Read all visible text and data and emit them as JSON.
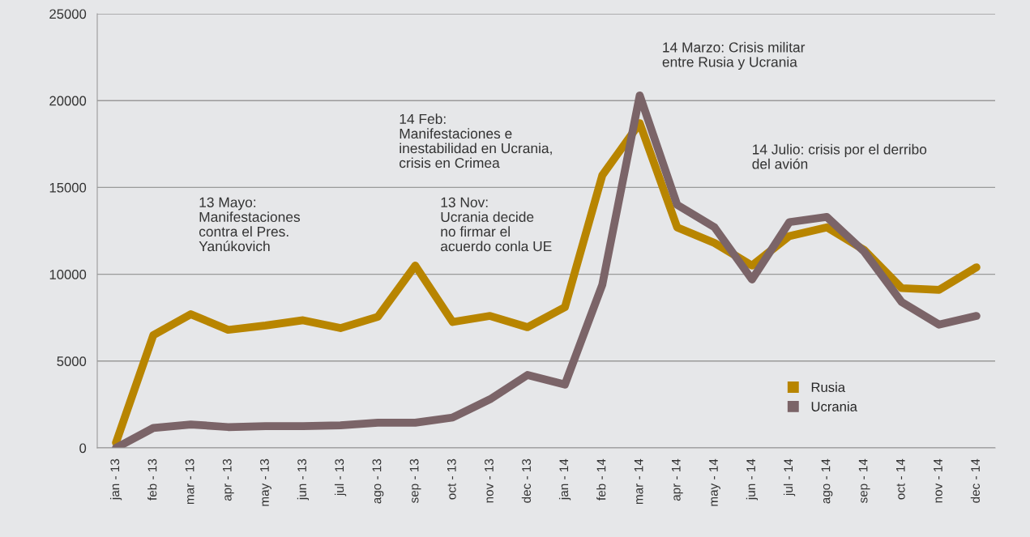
{
  "chart_data": {
    "type": "line",
    "categories": [
      "jan - 13",
      "feb - 13",
      "mar - 13",
      "apr - 13",
      "may - 13",
      "jun - 13",
      "jul - 13",
      "ago - 13",
      "sep - 13",
      "oct - 13",
      "nov - 13",
      "dec - 13",
      "jan - 14",
      "feb - 14",
      "mar - 14",
      "apr - 14",
      "may - 14",
      "jun - 14",
      "jul - 14",
      "ago - 14",
      "sep - 14",
      "oct - 14",
      "nov - 14",
      "dec - 14"
    ],
    "series": [
      {
        "name": "Rusia",
        "color": "#b88500",
        "values": [
          300,
          6500,
          7700,
          6800,
          7050,
          7350,
          6900,
          7550,
          10500,
          7250,
          7600,
          6950,
          8100,
          15700,
          18700,
          12700,
          11800,
          10500,
          12200,
          12700,
          11400,
          9200,
          9100,
          10400
        ]
      },
      {
        "name": "Ucrania",
        "color": "#7b6468",
        "values": [
          0,
          1150,
          1350,
          1200,
          1250,
          1250,
          1300,
          1450,
          1450,
          1750,
          2800,
          4200,
          3650,
          9400,
          20300,
          14000,
          12700,
          9700,
          13000,
          13300,
          11300,
          8400,
          7100,
          7600
        ]
      }
    ],
    "ylim": [
      0,
      25000
    ],
    "yticks": [
      0,
      5000,
      10000,
      15000,
      20000,
      25000
    ],
    "grid": "y",
    "legend": "bottom right",
    "marker": "none",
    "line_style": "solid",
    "annotations": [
      "13 Mayo:\nManifestaciones\ncontra el Pres.\nYanúkovich",
      "14 Feb:\nManifestaciones e\ninestabilidad en Ucrania,\ncrisis en Crimea",
      "13 Nov:\nUcrania decide\nno firmar el\nacuerdo conla UE",
      "14 Marzo: Crisis militar\nentre Rusia y Ucrania",
      "14 Julio: crisis por el derribo\ndel avión"
    ]
  }
}
